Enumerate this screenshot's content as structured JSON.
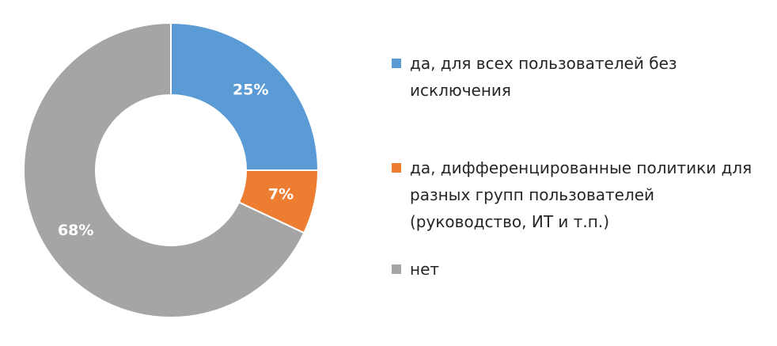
{
  "chart_data": {
    "type": "donut",
    "categories": [
      "да, для всех пользователей без исключения",
      "да, дифференцированные политики для разных групп пользователей (руководство, ИТ и т.п.)",
      "нет"
    ],
    "values": [
      25,
      7,
      68
    ],
    "value_labels": [
      "25%",
      "7%",
      "68%"
    ],
    "colors": [
      "#5b9bd5",
      "#ed7d31",
      "#a5a5a5"
    ],
    "legend": "right"
  }
}
